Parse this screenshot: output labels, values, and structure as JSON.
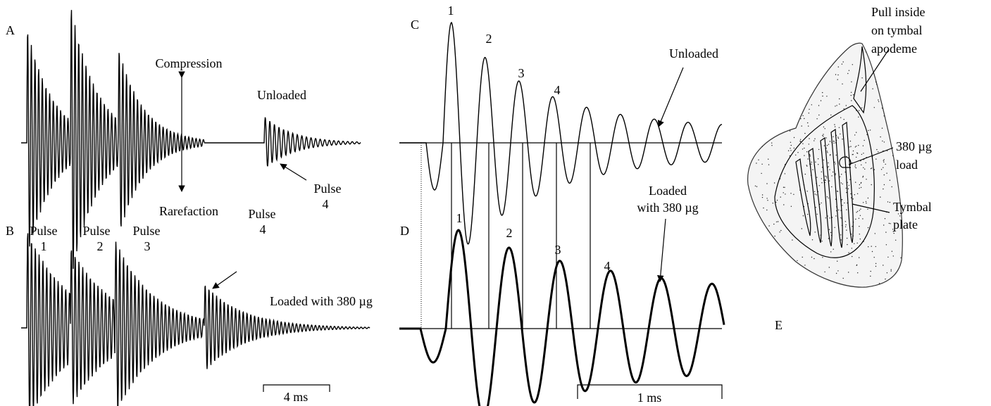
{
  "panel_a": {
    "letter": "A",
    "compression": "Compression",
    "rarefaction": "Rarefaction",
    "unloaded": "Unloaded",
    "pulse": "Pulse",
    "pulse_number": "4"
  },
  "panel_b": {
    "letter": "B",
    "pulses": [
      {
        "pulse": "Pulse",
        "number": "1"
      },
      {
        "pulse": "Pulse",
        "number": "2"
      },
      {
        "pulse": "Pulse",
        "number": "3"
      },
      {
        "pulse": "Pulse",
        "number": "4"
      }
    ],
    "loaded": "Loaded with 380 µg",
    "scale": "4 ms"
  },
  "panel_c": {
    "letter": "C",
    "peaks": [
      "1",
      "2",
      "3",
      "4"
    ],
    "unloaded": "Unloaded"
  },
  "panel_d": {
    "letter": "D",
    "peaks": [
      "1",
      "2",
      "3",
      "4"
    ],
    "loaded_line1": "Loaded",
    "loaded_line2": "with 380 µg",
    "scale": "1 ms"
  },
  "panel_e": {
    "letter": "E",
    "apodeme": [
      "Pull inside",
      "on tymbal",
      "apodeme"
    ],
    "load": [
      "380 µg",
      "load"
    ],
    "plate": [
      "Tymbal",
      "plate"
    ]
  }
}
